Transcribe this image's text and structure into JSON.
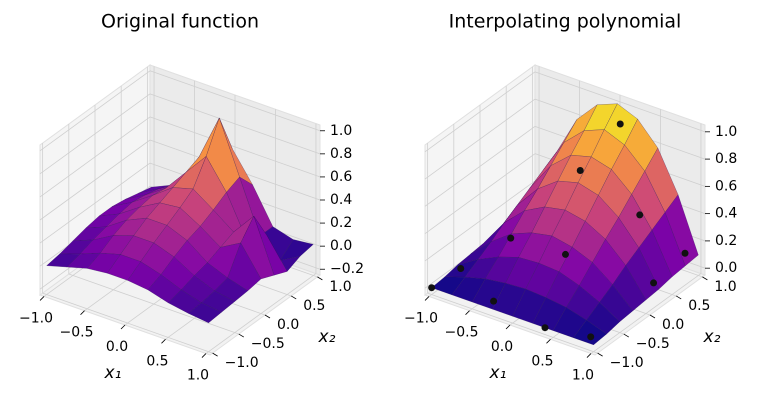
{
  "chart_data": [
    {
      "type": "surface",
      "title": "Original function",
      "xlabel": "x₁",
      "ylabel": "x₂",
      "colormap": "plasma",
      "x": [
        -1,
        -0.75,
        -0.5,
        -0.25,
        0,
        0.25,
        0.5,
        0.75,
        1
      ],
      "y": [
        -1,
        -0.75,
        -0.5,
        -0.25,
        0,
        0.25,
        0.5,
        0.75,
        1
      ],
      "z": [
        [
          0.0,
          0.05,
          0.1,
          0.12,
          0.12,
          0.1,
          0.05,
          0.02,
          0.0
        ],
        [
          0.02,
          0.08,
          0.15,
          0.2,
          0.2,
          0.15,
          0.08,
          0.03,
          0.01
        ],
        [
          0.05,
          0.12,
          0.22,
          0.28,
          0.28,
          0.22,
          0.12,
          0.05,
          0.02
        ],
        [
          0.08,
          0.15,
          0.27,
          0.35,
          0.35,
          0.28,
          0.15,
          0.08,
          0.03
        ],
        [
          0.1,
          0.18,
          0.3,
          0.4,
          0.42,
          0.32,
          0.2,
          0.3,
          0.05
        ],
        [
          0.1,
          0.2,
          0.32,
          0.45,
          0.5,
          0.38,
          0.25,
          0.45,
          0.0
        ],
        [
          0.08,
          0.18,
          0.3,
          0.5,
          0.7,
          0.45,
          0.1,
          0.2,
          -0.05
        ],
        [
          0.05,
          0.15,
          0.25,
          0.55,
          0.95,
          0.5,
          0.05,
          -0.1,
          0.0
        ],
        [
          0.02,
          0.1,
          0.2,
          0.4,
          0.6,
          0.35,
          0.05,
          0.0,
          0.02
        ]
      ],
      "xlim": [
        -1.05,
        1.05
      ],
      "ylim": [
        -1.05,
        1.05
      ],
      "zlim": [
        -0.25,
        1.05
      ],
      "xticks": [
        {
          "value": -1,
          "label": "−1.0"
        },
        {
          "value": -0.5,
          "label": "−0.5"
        },
        {
          "value": 0,
          "label": "0.0"
        },
        {
          "value": 0.5,
          "label": "0.5"
        },
        {
          "value": 1,
          "label": "1.0"
        }
      ],
      "yticks": [
        {
          "value": -1,
          "label": "−1.0"
        },
        {
          "value": -0.5,
          "label": "−0.5"
        },
        {
          "value": 0,
          "label": "0.0"
        },
        {
          "value": 0.5,
          "label": "0.5"
        },
        {
          "value": 1,
          "label": "1.0"
        }
      ],
      "zticks": [
        {
          "value": -0.2,
          "label": "−0.2"
        },
        {
          "value": 0,
          "label": "0.0"
        },
        0.2,
        0.4,
        0.6,
        0.8,
        {
          "value": 1,
          "label": "1.0"
        }
      ],
      "grid": true
    },
    {
      "type": "surface",
      "title": "Interpolating polynomial",
      "xlabel": "x₁",
      "ylabel": "x₂",
      "colormap": "plasma",
      "x": [
        -1,
        -0.75,
        -0.5,
        -0.25,
        0,
        0.25,
        0.5,
        0.75,
        1
      ],
      "y": [
        -1,
        -0.75,
        -0.5,
        -0.25,
        0,
        0.25,
        0.5,
        0.75,
        1
      ],
      "z": [
        [
          0,
          0,
          0,
          0,
          0,
          0,
          0,
          0,
          0
        ],
        [
          0.01,
          0.06,
          0.1,
          0.12,
          0.13,
          0.12,
          0.1,
          0.06,
          0.01
        ],
        [
          0.03,
          0.12,
          0.19,
          0.24,
          0.25,
          0.24,
          0.19,
          0.12,
          0.03
        ],
        [
          0.04,
          0.18,
          0.29,
          0.35,
          0.38,
          0.35,
          0.29,
          0.18,
          0.04
        ],
        [
          0.05,
          0.25,
          0.39,
          0.47,
          0.5,
          0.47,
          0.39,
          0.25,
          0.05
        ],
        [
          0.06,
          0.31,
          0.48,
          0.59,
          0.63,
          0.59,
          0.48,
          0.31,
          0.06
        ],
        [
          0.08,
          0.37,
          0.58,
          0.71,
          0.75,
          0.71,
          0.58,
          0.37,
          0.08
        ],
        [
          0.09,
          0.43,
          0.68,
          0.82,
          0.88,
          0.82,
          0.68,
          0.43,
          0.09
        ],
        [
          0.1,
          0.49,
          0.78,
          0.94,
          1.0,
          0.94,
          0.78,
          0.49,
          0.1
        ]
      ],
      "points": {
        "color": "#111111",
        "x": [
          -1,
          -0.9,
          -0.3,
          0.4,
          0.9,
          0.2,
          -0.8,
          -0.2,
          0.1,
          0.6,
          0.9,
          0.9
        ],
        "y": [
          -1,
          -0.6,
          -0.9,
          -1,
          -0.9,
          -0.3,
          0.2,
          0.6,
          0.9,
          0.5,
          0.3,
          0.9
        ],
        "z": [
          0,
          0.05,
          0.02,
          0,
          0.01,
          0.3,
          0.07,
          0.58,
          0.9,
          0.45,
          0.07,
          0.12
        ]
      },
      "xlim": [
        -1.05,
        1.05
      ],
      "ylim": [
        -1.05,
        1.05
      ],
      "zlim": [
        -0.05,
        1.05
      ],
      "xticks": [
        {
          "value": -1,
          "label": "−1.0"
        },
        {
          "value": -0.5,
          "label": "−0.5"
        },
        {
          "value": 0,
          "label": "0.0"
        },
        {
          "value": 0.5,
          "label": "0.5"
        },
        {
          "value": 1,
          "label": "1.0"
        }
      ],
      "yticks": [
        {
          "value": -1,
          "label": "−1.0"
        },
        {
          "value": -0.5,
          "label": "−0.5"
        },
        {
          "value": 0,
          "label": "0.0"
        },
        {
          "value": 0.5,
          "label": "0.5"
        },
        {
          "value": 1,
          "label": "1.0"
        }
      ],
      "zticks": [
        {
          "value": 0,
          "label": "0.0"
        },
        0.2,
        0.4,
        0.6,
        0.8,
        {
          "value": 1,
          "label": "1.0"
        }
      ],
      "grid": true
    }
  ]
}
